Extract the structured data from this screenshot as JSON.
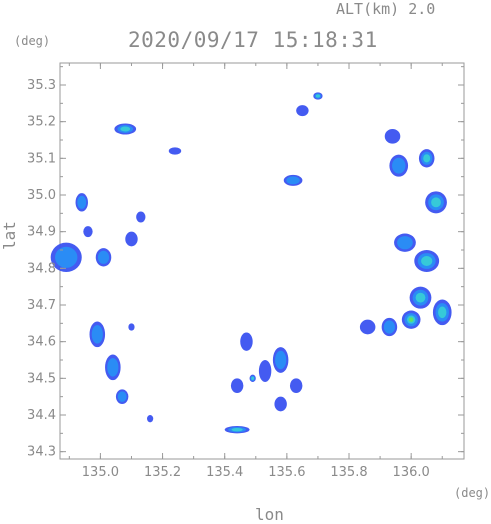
{
  "header": {
    "altitude": "ALT(km) 2.0",
    "timestamp": "2020/09/17 15:18:31",
    "y_unit": "(deg)",
    "x_unit": "(deg)"
  },
  "chart_data": {
    "type": "heatmap",
    "title": "2020/09/17 15:18:31",
    "subtitle": "ALT(km) 2.0",
    "xlabel": "lon",
    "ylabel": "lat",
    "xlim": [
      134.87,
      136.17
    ],
    "ylim": [
      34.28,
      35.36
    ],
    "x_ticks": [
      "135.0",
      "135.2",
      "135.4",
      "135.6",
      "135.8",
      "136.0"
    ],
    "y_ticks": [
      "34.3",
      "34.4",
      "34.5",
      "34.6",
      "34.7",
      "34.8",
      "34.9",
      "35.0",
      "35.1",
      "35.2",
      "35.3"
    ],
    "x_tick_values": [
      135.0,
      135.2,
      135.4,
      135.6,
      135.8,
      136.0
    ],
    "y_tick_values": [
      34.3,
      34.4,
      34.5,
      34.6,
      34.7,
      34.8,
      34.9,
      35.0,
      35.1,
      35.2,
      35.3
    ],
    "colors": {
      "low": "#3a52f0",
      "mid": "#2a8cf5",
      "high": "#36c9d8",
      "peak": "#5be36a",
      "axis": "#9a9a9a"
    },
    "echo_regions": [
      {
        "lon": 134.89,
        "lat": 34.83,
        "w": 0.1,
        "h": 0.08,
        "level": 1
      },
      {
        "lon": 135.01,
        "lat": 34.83,
        "w": 0.05,
        "h": 0.05,
        "level": 1
      },
      {
        "lon": 134.94,
        "lat": 34.98,
        "w": 0.04,
        "h": 0.05,
        "level": 1
      },
      {
        "lon": 134.96,
        "lat": 34.9,
        "w": 0.03,
        "h": 0.03,
        "level": 0
      },
      {
        "lon": 134.99,
        "lat": 34.62,
        "w": 0.05,
        "h": 0.07,
        "level": 1
      },
      {
        "lon": 135.04,
        "lat": 34.53,
        "w": 0.05,
        "h": 0.07,
        "level": 1
      },
      {
        "lon": 135.07,
        "lat": 34.45,
        "w": 0.04,
        "h": 0.04,
        "level": 1
      },
      {
        "lon": 135.1,
        "lat": 34.88,
        "w": 0.04,
        "h": 0.04,
        "level": 0
      },
      {
        "lon": 135.13,
        "lat": 34.94,
        "w": 0.03,
        "h": 0.03,
        "level": 0
      },
      {
        "lon": 135.08,
        "lat": 35.18,
        "w": 0.07,
        "h": 0.03,
        "level": 2
      },
      {
        "lon": 135.24,
        "lat": 35.12,
        "w": 0.04,
        "h": 0.02,
        "level": 0
      },
      {
        "lon": 135.62,
        "lat": 35.04,
        "w": 0.06,
        "h": 0.03,
        "level": 1
      },
      {
        "lon": 135.65,
        "lat": 35.23,
        "w": 0.04,
        "h": 0.03,
        "level": 0
      },
      {
        "lon": 135.7,
        "lat": 35.27,
        "w": 0.03,
        "h": 0.02,
        "level": 2
      },
      {
        "lon": 135.94,
        "lat": 35.16,
        "w": 0.05,
        "h": 0.04,
        "level": 0
      },
      {
        "lon": 135.96,
        "lat": 35.08,
        "w": 0.06,
        "h": 0.06,
        "level": 1
      },
      {
        "lon": 136.05,
        "lat": 35.1,
        "w": 0.05,
        "h": 0.05,
        "level": 2
      },
      {
        "lon": 136.08,
        "lat": 34.98,
        "w": 0.07,
        "h": 0.06,
        "level": 2
      },
      {
        "lon": 135.98,
        "lat": 34.87,
        "w": 0.07,
        "h": 0.05,
        "level": 1
      },
      {
        "lon": 136.05,
        "lat": 34.82,
        "w": 0.08,
        "h": 0.06,
        "level": 2
      },
      {
        "lon": 136.03,
        "lat": 34.72,
        "w": 0.07,
        "h": 0.06,
        "level": 2
      },
      {
        "lon": 136.0,
        "lat": 34.66,
        "w": 0.06,
        "h": 0.05,
        "level": 3
      },
      {
        "lon": 136.1,
        "lat": 34.68,
        "w": 0.06,
        "h": 0.07,
        "level": 2
      },
      {
        "lon": 135.86,
        "lat": 34.64,
        "w": 0.05,
        "h": 0.04,
        "level": 0
      },
      {
        "lon": 135.93,
        "lat": 34.64,
        "w": 0.05,
        "h": 0.05,
        "level": 1
      },
      {
        "lon": 135.44,
        "lat": 34.48,
        "w": 0.04,
        "h": 0.04,
        "level": 0
      },
      {
        "lon": 135.47,
        "lat": 34.6,
        "w": 0.04,
        "h": 0.05,
        "level": 0
      },
      {
        "lon": 135.53,
        "lat": 34.52,
        "w": 0.04,
        "h": 0.06,
        "level": 0
      },
      {
        "lon": 135.58,
        "lat": 34.55,
        "w": 0.05,
        "h": 0.07,
        "level": 1
      },
      {
        "lon": 135.58,
        "lat": 34.43,
        "w": 0.04,
        "h": 0.04,
        "level": 0
      },
      {
        "lon": 135.63,
        "lat": 34.48,
        "w": 0.04,
        "h": 0.04,
        "level": 0
      },
      {
        "lon": 135.44,
        "lat": 34.36,
        "w": 0.08,
        "h": 0.02,
        "level": 2
      },
      {
        "lon": 135.16,
        "lat": 34.39,
        "w": 0.02,
        "h": 0.02,
        "level": 0
      },
      {
        "lon": 135.1,
        "lat": 34.64,
        "w": 0.02,
        "h": 0.02,
        "level": 0
      },
      {
        "lon": 135.49,
        "lat": 34.5,
        "w": 0.02,
        "h": 0.02,
        "level": 2
      }
    ]
  }
}
